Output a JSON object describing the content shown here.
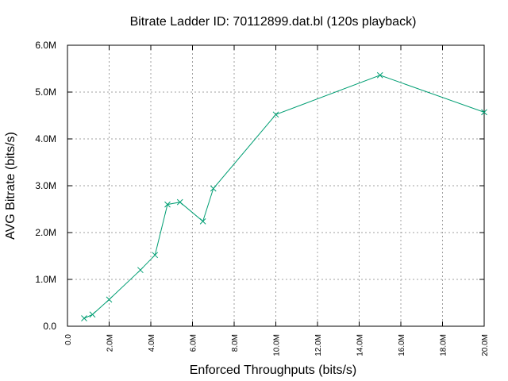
{
  "chart_data": {
    "type": "line",
    "title": "Bitrate Ladder ID: 70112899.dat.bl (120s playback)",
    "xlabel": "Enforced Throughputs (bits/s)",
    "ylabel": "AVG Bitrate (bits/s)",
    "xlim": [
      0,
      20000000
    ],
    "ylim": [
      0,
      6000000
    ],
    "x_ticks": [
      {
        "value": 0,
        "label": "0.0"
      },
      {
        "value": 2000000,
        "label": "2.0M"
      },
      {
        "value": 4000000,
        "label": "4.0M"
      },
      {
        "value": 6000000,
        "label": "6.0M"
      },
      {
        "value": 8000000,
        "label": "8.0M"
      },
      {
        "value": 10000000,
        "label": "10.0M"
      },
      {
        "value": 12000000,
        "label": "12.0M"
      },
      {
        "value": 14000000,
        "label": "14.0M"
      },
      {
        "value": 16000000,
        "label": "16.0M"
      },
      {
        "value": 18000000,
        "label": "18.0M"
      },
      {
        "value": 20000000,
        "label": "20.0M"
      }
    ],
    "y_ticks": [
      {
        "value": 0,
        "label": "0.0"
      },
      {
        "value": 1000000,
        "label": "1.0M"
      },
      {
        "value": 2000000,
        "label": "2.0M"
      },
      {
        "value": 3000000,
        "label": "3.0M"
      },
      {
        "value": 4000000,
        "label": "4.0M"
      },
      {
        "value": 5000000,
        "label": "5.0M"
      },
      {
        "value": 6000000,
        "label": "6.0M"
      }
    ],
    "grid": true,
    "series": [
      {
        "color": "#009e73",
        "marker": "x",
        "x": [
          800000,
          1200000,
          2000000,
          3500000,
          4200000,
          4800000,
          5400000,
          6500000,
          7000000,
          10000000,
          15000000,
          20000000
        ],
        "y": [
          170000,
          250000,
          570000,
          1200000,
          1520000,
          2600000,
          2650000,
          2240000,
          2940000,
          4520000,
          5360000,
          4570000
        ]
      }
    ]
  }
}
